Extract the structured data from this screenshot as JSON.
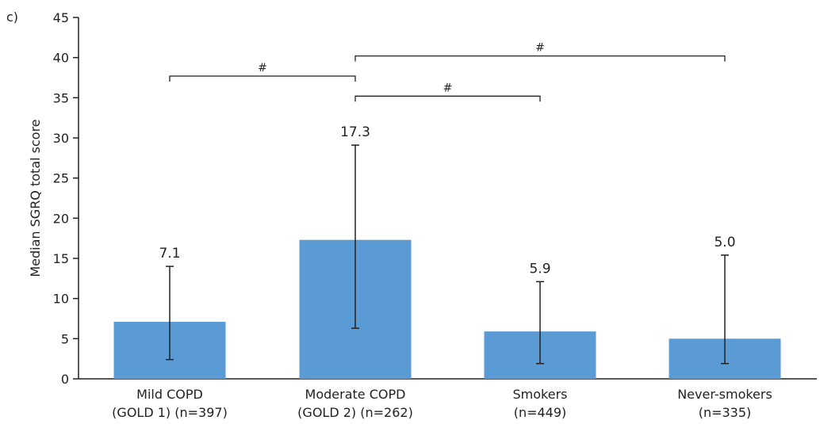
{
  "panel_label": "c)",
  "chart_data": {
    "type": "bar",
    "title": "",
    "ylabel": "Median SGRQ total score",
    "xlabel": "",
    "ylim": [
      0,
      45
    ],
    "yticks": [
      0,
      5,
      10,
      15,
      20,
      25,
      30,
      35,
      40,
      45
    ],
    "grid": false,
    "bar_color": "#5b9bd5",
    "categories": [
      {
        "line1": "Mild COPD",
        "line2": "(GOLD 1) (n=397)"
      },
      {
        "line1": "Moderate COPD",
        "line2": "(GOLD 2) (n=262)"
      },
      {
        "line1": "Smokers",
        "line2": "(n=449)"
      },
      {
        "line1": "Never-smokers",
        "line2": "(n=335)"
      }
    ],
    "values": [
      7.1,
      17.3,
      5.9,
      5.0
    ],
    "value_labels": [
      "7.1",
      "17.3",
      "5.9",
      "5.0"
    ],
    "error_low": [
      2.4,
      6.3,
      1.9,
      1.9
    ],
    "error_high": [
      14.0,
      29.1,
      12.1,
      15.4
    ],
    "significance": [
      {
        "from": 0,
        "to": 1,
        "y": 37.7,
        "label": "#"
      },
      {
        "from": 1,
        "to": 2,
        "y": 35.2,
        "label": "#"
      },
      {
        "from": 1,
        "to": 3,
        "y": 40.2,
        "label": "#"
      }
    ]
  }
}
